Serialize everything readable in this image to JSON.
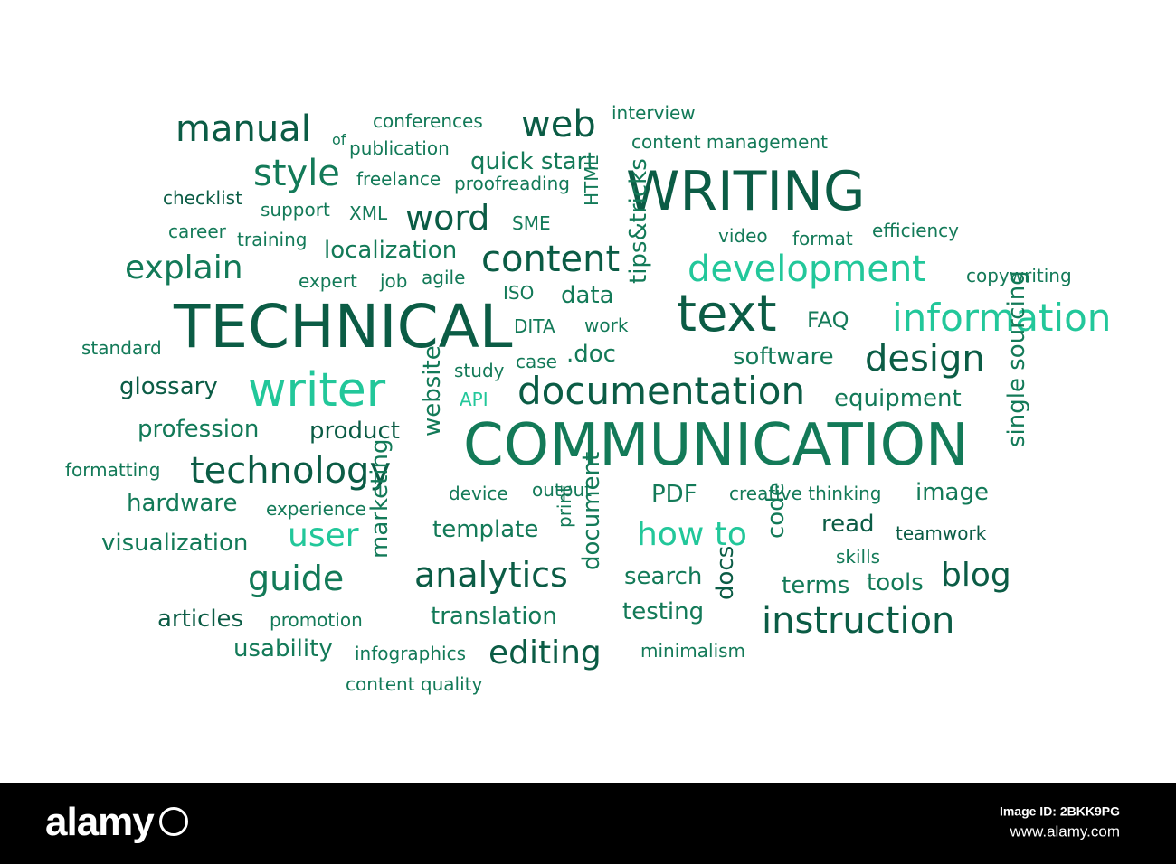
{
  "words": [
    {
      "text": "WRITING",
      "color": "#0b5c45"
    },
    {
      "text": "TECHNICAL",
      "color": "#0b5c45"
    },
    {
      "text": "COMMUNICATION",
      "color": "#137a58"
    },
    {
      "text": "text",
      "color": "#0b5c45"
    },
    {
      "text": "development",
      "color": "#22c79a"
    },
    {
      "text": "information",
      "color": "#22c79a"
    },
    {
      "text": "writer",
      "color": "#22c79a"
    },
    {
      "text": "documentation",
      "color": "#0b5c45"
    },
    {
      "text": "technology",
      "color": "#0b5c45"
    },
    {
      "text": "instruction",
      "color": "#0b5c45"
    },
    {
      "text": "manual",
      "color": "#0b5c45"
    },
    {
      "text": "web",
      "color": "#0b5c45"
    },
    {
      "text": "style",
      "color": "#137a58"
    },
    {
      "text": "word",
      "color": "#0b5c45"
    },
    {
      "text": "content",
      "color": "#0b5c45"
    },
    {
      "text": "explain",
      "color": "#137a58"
    },
    {
      "text": "design",
      "color": "#0b5c45"
    },
    {
      "text": "analytics",
      "color": "#0b5c45"
    },
    {
      "text": "guide",
      "color": "#137a58"
    },
    {
      "text": "user",
      "color": "#22c79a"
    },
    {
      "text": "how to",
      "color": "#22c79a"
    },
    {
      "text": "blog",
      "color": "#0b5c45"
    },
    {
      "text": "editing",
      "color": "#0b5c45"
    },
    {
      "text": "localization",
      "color": "#137a58"
    },
    {
      "text": "quick start",
      "color": "#137a58"
    },
    {
      "text": "interview",
      "color": "#137a58"
    },
    {
      "text": "conferences",
      "color": "#137a58"
    },
    {
      "text": "of",
      "color": "#137a58"
    },
    {
      "text": "publication",
      "color": "#137a58"
    },
    {
      "text": "content management",
      "color": "#137a58"
    },
    {
      "text": "freelance",
      "color": "#137a58"
    },
    {
      "text": "proofreading",
      "color": "#137a58"
    },
    {
      "text": "checklist",
      "color": "#0b5c45"
    },
    {
      "text": "support",
      "color": "#137a58"
    },
    {
      "text": "XML",
      "color": "#137a58"
    },
    {
      "text": "SME",
      "color": "#137a58"
    },
    {
      "text": "career",
      "color": "#137a58"
    },
    {
      "text": "training",
      "color": "#137a58"
    },
    {
      "text": "video",
      "color": "#137a58"
    },
    {
      "text": "format",
      "color": "#137a58"
    },
    {
      "text": "efficiency",
      "color": "#137a58"
    },
    {
      "text": "copywriting",
      "color": "#137a58"
    },
    {
      "text": "expert",
      "color": "#137a58"
    },
    {
      "text": "job",
      "color": "#137a58"
    },
    {
      "text": "agile",
      "color": "#137a58"
    },
    {
      "text": "ISO",
      "color": "#137a58"
    },
    {
      "text": "data",
      "color": "#137a58"
    },
    {
      "text": "DITA",
      "color": "#137a58"
    },
    {
      "text": "work",
      "color": "#137a58"
    },
    {
      "text": "FAQ",
      "color": "#137a58"
    },
    {
      "text": "standard",
      "color": "#137a58"
    },
    {
      "text": ".doc",
      "color": "#137a58"
    },
    {
      "text": "software",
      "color": "#137a58"
    },
    {
      "text": "study",
      "color": "#137a58"
    },
    {
      "text": "case",
      "color": "#137a58"
    },
    {
      "text": "glossary",
      "color": "#0b5c45"
    },
    {
      "text": "API",
      "color": "#22c79a"
    },
    {
      "text": "equipment",
      "color": "#137a58"
    },
    {
      "text": "profession",
      "color": "#137a58"
    },
    {
      "text": "product",
      "color": "#0b5c45"
    },
    {
      "text": "formatting",
      "color": "#137a58"
    },
    {
      "text": "device",
      "color": "#137a58"
    },
    {
      "text": "output",
      "color": "#137a58"
    },
    {
      "text": "PDF",
      "color": "#137a58"
    },
    {
      "text": "creative thinking",
      "color": "#137a58"
    },
    {
      "text": "image",
      "color": "#137a58"
    },
    {
      "text": "hardware",
      "color": "#137a58"
    },
    {
      "text": "experience",
      "color": "#137a58"
    },
    {
      "text": "template",
      "color": "#137a58"
    },
    {
      "text": "read",
      "color": "#0b5c45"
    },
    {
      "text": "teamwork",
      "color": "#0b5c45"
    },
    {
      "text": "visualization",
      "color": "#137a58"
    },
    {
      "text": "skills",
      "color": "#137a58"
    },
    {
      "text": "search",
      "color": "#137a58"
    },
    {
      "text": "terms",
      "color": "#137a58"
    },
    {
      "text": "tools",
      "color": "#137a58"
    },
    {
      "text": "articles",
      "color": "#0b5c45"
    },
    {
      "text": "promotion",
      "color": "#137a58"
    },
    {
      "text": "translation",
      "color": "#137a58"
    },
    {
      "text": "testing",
      "color": "#137a58"
    },
    {
      "text": "usability",
      "color": "#137a58"
    },
    {
      "text": "infographics",
      "color": "#137a58"
    },
    {
      "text": "minimalism",
      "color": "#137a58"
    },
    {
      "text": "content quality",
      "color": "#137a58"
    },
    {
      "text": "HTML",
      "color": "#137a58"
    },
    {
      "text": "tips&tricks",
      "color": "#137a58"
    },
    {
      "text": "website",
      "color": "#137a58"
    },
    {
      "text": "marketing",
      "color": "#137a58"
    },
    {
      "text": "print",
      "color": "#137a58"
    },
    {
      "text": "document",
      "color": "#137a58"
    },
    {
      "text": "code",
      "color": "#137a58"
    },
    {
      "text": "docs",
      "color": "#0b5c45"
    },
    {
      "text": "single sourcing",
      "color": "#137a58"
    }
  ],
  "footer": {
    "logo": "alamy",
    "logo_icon": "alamy-a-icon",
    "image_id": "Image ID: 2BKK9PG",
    "url": "www.alamy.com"
  }
}
